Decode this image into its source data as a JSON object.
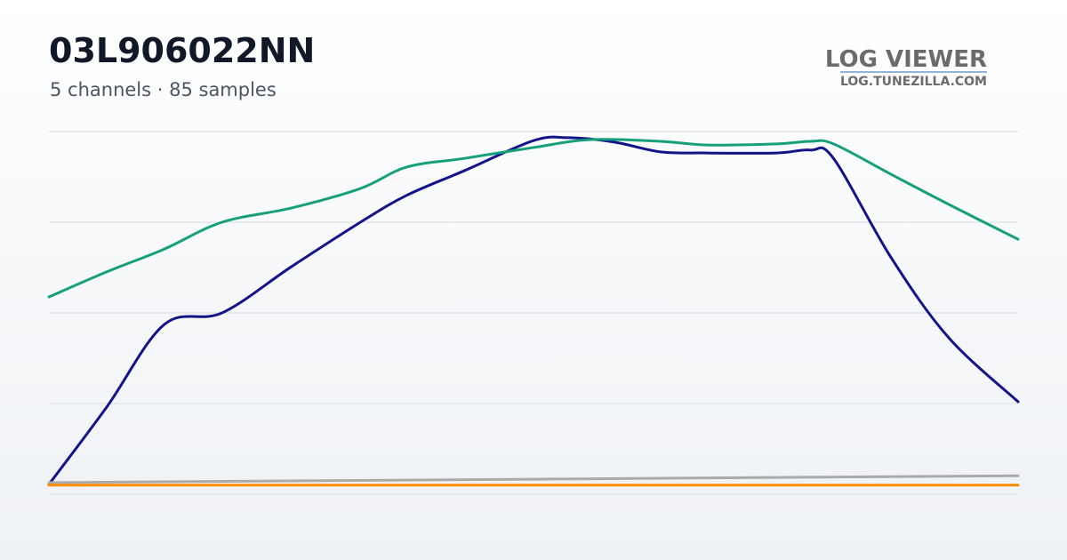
{
  "chart_data": {
    "type": "line",
    "title": "03L906022NN",
    "subtitle": "5 channels · 85 samples",
    "brand": "LOG VIEWER",
    "brand_url": "LOG.TUNEZILLA.COM",
    "xlim": [
      0,
      84
    ],
    "ylim": [
      0,
      100
    ],
    "yticks": [
      0,
      25,
      50,
      75,
      100
    ],
    "grid": true,
    "series": [
      {
        "color": "#14148a",
        "x": [
          0,
          5,
          10,
          15,
          21,
          27,
          31,
          36,
          42,
          45,
          49,
          53,
          57,
          63,
          66,
          68,
          73,
          78,
          84
        ],
        "values": [
          2.7,
          24,
          46.8,
          50,
          62.7,
          75,
          82.4,
          89.2,
          97.5,
          98.3,
          97.1,
          94.4,
          94.1,
          94.1,
          94.9,
          92.6,
          65.2,
          43.1,
          25.5
        ]
      },
      {
        "color": "#16a07a",
        "x": [
          0,
          5,
          10,
          15,
          21,
          27,
          31,
          36,
          42,
          47,
          53,
          57,
          63,
          66,
          68,
          73,
          78,
          84
        ],
        "values": [
          54.4,
          61.3,
          67.6,
          75,
          78.9,
          84.3,
          90.2,
          92.6,
          95.6,
          97.8,
          97.3,
          96.3,
          96.6,
          97.3,
          96.6,
          88.2,
          79.9,
          70.3
        ]
      },
      {
        "color": "#aaaaaa",
        "x": [
          0,
          84
        ],
        "values": [
          3.2,
          5.1
        ]
      },
      {
        "color": "#ff8c00",
        "x": [
          0,
          84
        ],
        "values": [
          2.5,
          2.5
        ]
      }
    ]
  }
}
